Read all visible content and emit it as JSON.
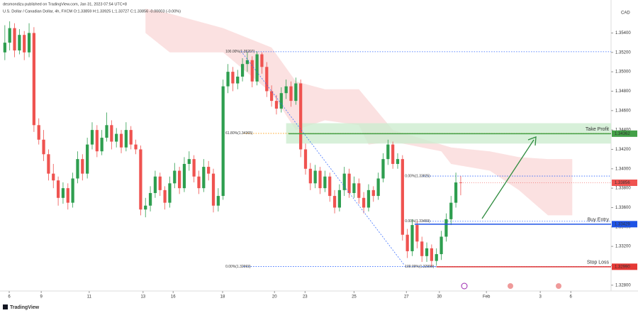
{
  "header": {
    "publisher": "desmondizu published on TradingView.com, Jan 31, 2023 07:54 UTC+8",
    "symbol": "U.S. Dollar / Canadian Dollar, 4h, FXCM  O:1.33859 H:1.33925 L:1.33727 C:1.33856 -0.00003 (-0.00%)",
    "currency": "CAD",
    "footer": "TradingView"
  },
  "chart_data": {
    "type": "candlestick",
    "up_color": "#2e9e4f",
    "down_color": "#ef5350",
    "grid": false,
    "xlim": [
      -1,
      125
    ],
    "ylim": [
      1.3274,
      1.3574
    ],
    "xticks": [
      {
        "value": 0.9,
        "label": "6"
      },
      {
        "value": 7.5,
        "label": "9"
      },
      {
        "value": 17.4,
        "label": "11"
      },
      {
        "value": 28.5,
        "label": "13"
      },
      {
        "value": 34.7,
        "label": "16"
      },
      {
        "value": 44.9,
        "label": "18"
      },
      {
        "value": 55.6,
        "label": "20"
      },
      {
        "value": 61.9,
        "label": "23"
      },
      {
        "value": 72,
        "label": "25"
      },
      {
        "value": 82.8,
        "label": "27"
      },
      {
        "value": 89.6,
        "label": "30"
      },
      {
        "value": 99.3,
        "label": "Feb"
      },
      {
        "value": 110.4,
        "label": "3"
      },
      {
        "value": 116.7,
        "label": "6"
      }
    ],
    "yticks": [
      {
        "value": 1.354,
        "label": "1.35400"
      },
      {
        "value": 1.352,
        "label": "1.35200"
      },
      {
        "value": 1.35,
        "label": "1.35000"
      },
      {
        "value": 1.348,
        "label": "1.34800"
      },
      {
        "value": 1.346,
        "label": "1.34600"
      },
      {
        "value": 1.344,
        "label": "1.34400"
      },
      {
        "value": 1.342,
        "label": "1.34200"
      },
      {
        "value": 1.34,
        "label": "1.34000"
      },
      {
        "value": 1.338,
        "label": "1.33800"
      },
      {
        "value": 1.336,
        "label": "1.33600"
      },
      {
        "value": 1.334,
        "label": "1.33400"
      },
      {
        "value": 1.332,
        "label": "1.33200"
      },
      {
        "value": 1.33,
        "label": "1.33000"
      },
      {
        "value": 1.328,
        "label": "1.32800"
      }
    ],
    "ohlc": [
      [
        1.352,
        1.3548,
        1.3512,
        1.353
      ],
      [
        1.353,
        1.3552,
        1.3522,
        1.3545
      ],
      [
        1.3545,
        1.355,
        1.3515,
        1.3522
      ],
      [
        1.3522,
        1.3544,
        1.3518,
        1.3538
      ],
      [
        1.3538,
        1.3542,
        1.3512,
        1.352
      ],
      [
        1.352,
        1.355,
        1.3515,
        1.354
      ],
      [
        1.354,
        1.3546,
        1.3438,
        1.3445
      ],
      [
        1.3445,
        1.3452,
        1.3425,
        1.343
      ],
      [
        1.343,
        1.344,
        1.3408,
        1.3415
      ],
      [
        1.3415,
        1.342,
        1.3388,
        1.3395
      ],
      [
        1.3395,
        1.3405,
        1.338,
        1.3388
      ],
      [
        1.3388,
        1.3392,
        1.3362,
        1.337
      ],
      [
        1.337,
        1.3386,
        1.3364,
        1.338
      ],
      [
        1.338,
        1.3385,
        1.3358,
        1.3365
      ],
      [
        1.3365,
        1.3396,
        1.336,
        1.339
      ],
      [
        1.339,
        1.3418,
        1.3385,
        1.341
      ],
      [
        1.341,
        1.3415,
        1.3388,
        1.3395
      ],
      [
        1.3395,
        1.3432,
        1.339,
        1.3425
      ],
      [
        1.3425,
        1.3448,
        1.342,
        1.344
      ],
      [
        1.344,
        1.3445,
        1.3412,
        1.3418
      ],
      [
        1.3418,
        1.344,
        1.3414,
        1.3432
      ],
      [
        1.3432,
        1.3458,
        1.3428,
        1.3445
      ],
      [
        1.3445,
        1.345,
        1.342,
        1.3428
      ],
      [
        1.3428,
        1.3442,
        1.3422,
        1.3436
      ],
      [
        1.3436,
        1.344,
        1.3416,
        1.3422
      ],
      [
        1.3422,
        1.3448,
        1.3418,
        1.344
      ],
      [
        1.344,
        1.3444,
        1.342,
        1.3425
      ],
      [
        1.3425,
        1.343,
        1.3415,
        1.342
      ],
      [
        1.342,
        1.3424,
        1.3352,
        1.3358
      ],
      [
        1.3358,
        1.337,
        1.335,
        1.3362
      ],
      [
        1.3362,
        1.3382,
        1.3356,
        1.3375
      ],
      [
        1.3375,
        1.3398,
        1.337,
        1.3392
      ],
      [
        1.3392,
        1.3396,
        1.3372,
        1.3378
      ],
      [
        1.3378,
        1.3382,
        1.3358,
        1.3365
      ],
      [
        1.3365,
        1.3392,
        1.336,
        1.3385
      ],
      [
        1.3385,
        1.3406,
        1.338,
        1.3398
      ],
      [
        1.3398,
        1.3402,
        1.3374,
        1.338
      ],
      [
        1.338,
        1.3412,
        1.3376,
        1.3405
      ],
      [
        1.3405,
        1.3418,
        1.3398,
        1.341
      ],
      [
        1.341,
        1.3414,
        1.3386,
        1.3392
      ],
      [
        1.3392,
        1.3398,
        1.3374,
        1.338
      ],
      [
        1.338,
        1.341,
        1.3376,
        1.3402
      ],
      [
        1.3402,
        1.3408,
        1.3388,
        1.3395
      ],
      [
        1.3395,
        1.34,
        1.3355,
        1.3362
      ],
      [
        1.3362,
        1.338,
        1.3356,
        1.3372
      ],
      [
        1.3372,
        1.3492,
        1.3368,
        1.3485
      ],
      [
        1.3485,
        1.3508,
        1.3478,
        1.35
      ],
      [
        1.35,
        1.3505,
        1.348,
        1.3488
      ],
      [
        1.3488,
        1.3502,
        1.3482,
        1.3495
      ],
      [
        1.3495,
        1.3514,
        1.349,
        1.3508
      ],
      [
        1.3508,
        1.352,
        1.35,
        1.3512
      ],
      [
        1.3512,
        1.3516,
        1.3484,
        1.349
      ],
      [
        1.349,
        1.3521,
        1.3486,
        1.3518
      ],
      [
        1.3518,
        1.352,
        1.3498,
        1.3505
      ],
      [
        1.3505,
        1.351,
        1.3474,
        1.348
      ],
      [
        1.348,
        1.3486,
        1.3464,
        1.347
      ],
      [
        1.347,
        1.3476,
        1.3456,
        1.3462
      ],
      [
        1.3462,
        1.3484,
        1.3458,
        1.3478
      ],
      [
        1.3478,
        1.3492,
        1.3472,
        1.3485
      ],
      [
        1.3485,
        1.349,
        1.3464,
        1.347
      ],
      [
        1.347,
        1.3494,
        1.3466,
        1.3488
      ],
      [
        1.3488,
        1.3492,
        1.3412,
        1.342
      ],
      [
        1.342,
        1.3426,
        1.3394,
        1.34
      ],
      [
        1.34,
        1.3406,
        1.3378,
        1.3385
      ],
      [
        1.3385,
        1.3404,
        1.338,
        1.3398
      ],
      [
        1.3398,
        1.3402,
        1.3374,
        1.338
      ],
      [
        1.338,
        1.3398,
        1.3376,
        1.3392
      ],
      [
        1.3392,
        1.3396,
        1.3366,
        1.3372
      ],
      [
        1.3372,
        1.3378,
        1.3354,
        1.336
      ],
      [
        1.336,
        1.3384,
        1.3356,
        1.3378
      ],
      [
        1.3378,
        1.3402,
        1.3372,
        1.3395
      ],
      [
        1.3395,
        1.34,
        1.337,
        1.3375
      ],
      [
        1.3375,
        1.3392,
        1.337,
        1.3385
      ],
      [
        1.3385,
        1.339,
        1.3364,
        1.337
      ],
      [
        1.337,
        1.3376,
        1.3354,
        1.336
      ],
      [
        1.336,
        1.3384,
        1.3356,
        1.3378
      ],
      [
        1.3378,
        1.3382,
        1.3366,
        1.3372
      ],
      [
        1.3372,
        1.3396,
        1.3368,
        1.339
      ],
      [
        1.339,
        1.3416,
        1.3386,
        1.341
      ],
      [
        1.341,
        1.343,
        1.3404,
        1.3425
      ],
      [
        1.3425,
        1.3428,
        1.34,
        1.3405
      ],
      [
        1.3405,
        1.3416,
        1.34,
        1.341
      ],
      [
        1.341,
        1.3414,
        1.3326,
        1.3332
      ],
      [
        1.3332,
        1.3338,
        1.3308,
        1.3315
      ],
      [
        1.3315,
        1.3348,
        1.331,
        1.3342
      ],
      [
        1.3342,
        1.3346,
        1.3318,
        1.3325
      ],
      [
        1.3325,
        1.333,
        1.3304,
        1.331
      ],
      [
        1.331,
        1.3324,
        1.3304,
        1.3318
      ],
      [
        1.3318,
        1.3322,
        1.3299,
        1.3305
      ],
      [
        1.3305,
        1.3318,
        1.33,
        1.3312
      ],
      [
        1.3312,
        1.3336,
        1.3306,
        1.333
      ],
      [
        1.333,
        1.3354,
        1.3325,
        1.3348
      ],
      [
        1.3348,
        1.3372,
        1.3342,
        1.3365
      ],
      [
        1.3365,
        1.3396,
        1.336,
        1.33859
      ],
      [
        1.33859,
        1.33925,
        1.33727,
        1.33856
      ]
    ],
    "cloud": {
      "color": "#f8c9c9",
      "x": [
        29,
        34,
        45,
        55,
        60,
        66,
        73,
        75,
        80,
        90,
        92,
        100,
        106,
        112,
        117
      ],
      "upper": [
        1.3565,
        1.356,
        1.3545,
        1.3525,
        1.349,
        1.3482,
        1.3482,
        1.347,
        1.344,
        1.3425,
        1.3422,
        1.3418,
        1.3412,
        1.341,
        1.341
      ],
      "lower": [
        1.354,
        1.352,
        1.352,
        1.3478,
        1.344,
        1.345,
        1.3445,
        1.3425,
        1.3428,
        1.3418,
        1.3405,
        1.3398,
        1.3378,
        1.3352,
        1.3352
      ]
    },
    "zone": {
      "from": 58,
      "upper": 1.3447,
      "lower": 1.3426,
      "color": "#cdeccf"
    },
    "fib_levels": [
      {
        "label": "100.00%(1.35207)",
        "value": 1.35207,
        "from": 45.5,
        "color": "#2962ff"
      },
      {
        "label": "61.80%(1.34365)",
        "value": 1.34365,
        "from": 45.5,
        "color": "#ff9800"
      },
      {
        "label": "0.00%(1.32993)",
        "value": 1.32993,
        "from": 45.5,
        "color": "#2962ff"
      },
      {
        "label": "0.00%(1.33925)",
        "value": 1.33925,
        "from": 82.5,
        "color": "#2962ff"
      },
      {
        "label": "0.00%(1.33459)",
        "value": 1.33459,
        "from": 82.5,
        "color": "#2962ff"
      },
      {
        "label": "100.00%(1.32990)",
        "value": 1.3299,
        "from": 82.5,
        "color": "#2962ff"
      }
    ],
    "levels": [
      {
        "name": "Take Profit",
        "price": {
          "value": 1.34362,
          "label": "1.34362"
        },
        "from": 58.5,
        "color": "#43a047"
      },
      {
        "name": "Buy Entry",
        "price": {
          "value": 1.33429,
          "label": "1.33429"
        },
        "from": 84.5,
        "color": "#1e53e5"
      },
      {
        "name": "Stop Loss",
        "price": {
          "value": 1.3299,
          "label": "1.32990"
        },
        "from": 89,
        "color": "#e53935"
      }
    ],
    "last_price": {
      "value": 1.33856,
      "label": "1.33856",
      "color": "#ef5350"
    }
  }
}
